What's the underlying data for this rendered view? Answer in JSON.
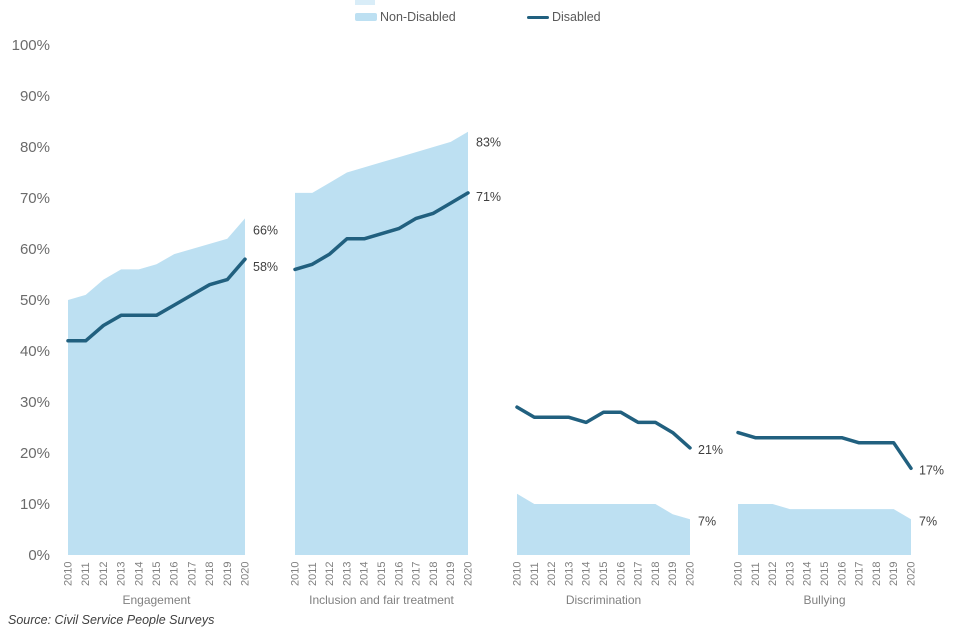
{
  "legend": {
    "non_disabled": "Non-Disabled",
    "disabled": "Disabled"
  },
  "source_note": "Source: Civil Service People Surveys",
  "colors": {
    "area_fill": "#bde0f2",
    "line_stroke": "#21607f",
    "axis_text": "#6b6b6b",
    "tick_text": "#808080",
    "value_text": "#404040",
    "legend_text": "#595959"
  },
  "chart_data": {
    "type": "area",
    "title": "",
    "legend_position": "top-center",
    "grid": false,
    "ylim": [
      0,
      100
    ],
    "x": [
      "2010",
      "2011",
      "2012",
      "2013",
      "2014",
      "2015",
      "2016",
      "2017",
      "2018",
      "2019",
      "2020"
    ],
    "yticks": [
      {
        "v": 100,
        "label": "100%"
      },
      {
        "v": 90,
        "label": "90%"
      },
      {
        "v": 80,
        "label": "80%"
      },
      {
        "v": 70,
        "label": "70%"
      },
      {
        "v": 60,
        "label": "60%"
      },
      {
        "v": 50,
        "label": "50%"
      },
      {
        "v": 40,
        "label": "40%"
      },
      {
        "v": 30,
        "label": "30%"
      },
      {
        "v": 20,
        "label": "20%"
      },
      {
        "v": 10,
        "label": "10%"
      },
      {
        "v": 0,
        "label": "0%"
      }
    ],
    "panels": [
      {
        "label": "Engagement",
        "series": [
          {
            "name": "Non-Disabled",
            "type": "area",
            "values": [
              50,
              51,
              54,
              56,
              56,
              57,
              59,
              60,
              61,
              62,
              66
            ],
            "end_label": "66%"
          },
          {
            "name": "Disabled",
            "type": "line",
            "values": [
              42,
              42,
              45,
              47,
              47,
              47,
              49,
              51,
              53,
              54,
              58
            ],
            "end_label": "58%"
          }
        ]
      },
      {
        "label": "Inclusion and fair treatment",
        "series": [
          {
            "name": "Non-Disabled",
            "type": "area",
            "values": [
              71,
              71,
              73,
              75,
              76,
              77,
              78,
              79,
              80,
              81,
              83
            ],
            "end_label": "83%"
          },
          {
            "name": "Disabled",
            "type": "line",
            "values": [
              56,
              57,
              59,
              62,
              62,
              63,
              64,
              66,
              67,
              69,
              71
            ],
            "end_label": "71%"
          }
        ]
      },
      {
        "label": "Discrimination",
        "series": [
          {
            "name": "Non-Disabled",
            "type": "area",
            "values": [
              12,
              10,
              10,
              10,
              10,
              10,
              10,
              10,
              10,
              8,
              7
            ],
            "end_label": "7%"
          },
          {
            "name": "Disabled",
            "type": "line",
            "values": [
              29,
              27,
              27,
              27,
              26,
              28,
              28,
              26,
              26,
              24,
              21
            ],
            "end_label": "21%"
          }
        ]
      },
      {
        "label": "Bullying",
        "series": [
          {
            "name": "Non-Disabled",
            "type": "area",
            "values": [
              10,
              10,
              10,
              9,
              9,
              9,
              9,
              9,
              9,
              9,
              7
            ],
            "end_label": "7%"
          },
          {
            "name": "Disabled",
            "type": "line",
            "values": [
              24,
              23,
              23,
              23,
              23,
              23,
              23,
              22,
              22,
              22,
              17
            ],
            "end_label": "17%"
          }
        ]
      }
    ]
  }
}
